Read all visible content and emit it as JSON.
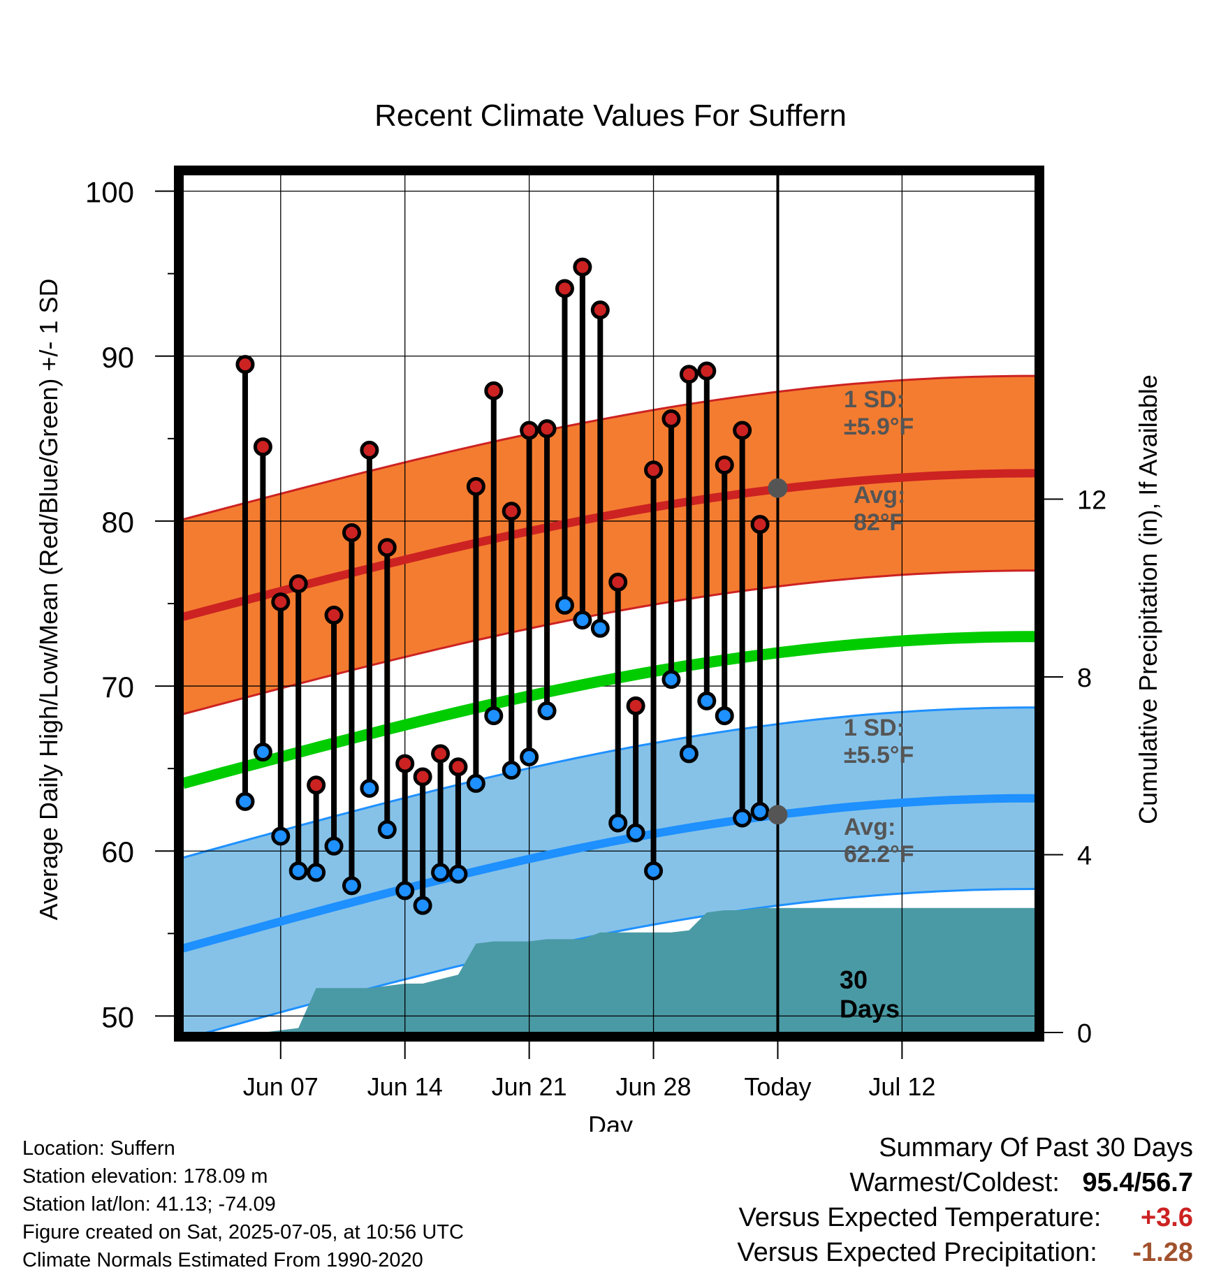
{
  "chart_data": {
    "type": "bar",
    "title": "Recent Climate Values For Suffern",
    "xlabel": "Day",
    "ylabel": "Average Daily High/Low/Mean (Red/Blue/Green) +/- 1 SD",
    "y2label": "Cumulative Precipitation (in), If Available",
    "ylim": [
      49,
      101
    ],
    "y_ticks": [
      "50",
      "60",
      "70",
      "80",
      "90",
      "100"
    ],
    "y2lim": [
      0,
      19.3
    ],
    "y2_ticks": [
      "0",
      "4",
      "8",
      "12"
    ],
    "x_range_days": [
      -33.5,
      14.5
    ],
    "x_ticks": [
      {
        "day": -28,
        "label": "Jun 07"
      },
      {
        "day": -21,
        "label": "Jun 14"
      },
      {
        "day": -14,
        "label": "Jun 21"
      },
      {
        "day": -7,
        "label": "Jun 28"
      },
      {
        "day": 0,
        "label": "Today"
      },
      {
        "day": 7,
        "label": "Jul 12"
      }
    ],
    "series": [
      {
        "name": "High",
        "color": "#cc2222",
        "values": [
          89.5,
          84.5,
          75.1,
          76.2,
          64.0,
          74.3,
          79.3,
          84.3,
          78.4,
          65.3,
          64.5,
          65.9,
          65.1,
          82.1,
          87.9,
          80.6,
          85.5,
          85.6,
          94.1,
          95.4,
          92.8,
          76.3,
          68.8,
          83.1,
          86.2,
          88.9,
          89.1,
          83.4,
          85.5,
          79.8
        ]
      },
      {
        "name": "Low",
        "color": "#1e90ff",
        "values": [
          63.0,
          66.0,
          60.9,
          58.8,
          58.7,
          60.3,
          57.9,
          63.8,
          61.3,
          57.6,
          56.7,
          58.7,
          58.6,
          64.1,
          68.2,
          64.9,
          65.7,
          68.5,
          74.9,
          74.0,
          73.5,
          61.7,
          61.1,
          58.8,
          70.4,
          65.9,
          69.1,
          68.2,
          62.0,
          62.4
        ]
      }
    ],
    "normal_high": {
      "start": 74.2,
      "end": 82.9,
      "today": 82,
      "sd": 5.9,
      "color": "#cc2222",
      "band_color": "#f47c30"
    },
    "normal_low": {
      "start": 54.1,
      "end": 63.2,
      "today": 62.2,
      "sd": 5.5,
      "color": "#1e90ff",
      "band_color": "#86c2e8"
    },
    "normal_mean": {
      "start": 64.1,
      "end": 73.0,
      "color": "#00cc00"
    },
    "precipitation": {
      "color": "#4a9aa5",
      "days": [
        -29,
        -27,
        -26,
        -25,
        -24,
        -23,
        -22,
        -21,
        -20,
        -19,
        -18,
        -17,
        -16,
        -15,
        -14,
        -13,
        -12,
        -11,
        -10,
        -9,
        -8,
        -7,
        -6,
        -5,
        -4,
        -3,
        -2,
        -1,
        0
      ],
      "values": [
        0,
        0.1,
        1.0,
        1.0,
        1.0,
        1.0,
        1.05,
        1.1,
        1.1,
        1.2,
        1.3,
        2.0,
        2.05,
        2.05,
        2.05,
        2.1,
        2.1,
        2.1,
        2.25,
        2.25,
        2.25,
        2.25,
        2.25,
        2.3,
        2.7,
        2.75,
        2.75,
        2.8,
        2.8
      ]
    },
    "annotations": {
      "high_sd_label": [
        "1 SD:",
        "±5.9°F"
      ],
      "high_avg_label": [
        "Avg:",
        "82°F"
      ],
      "low_sd_label": [
        "1 SD:",
        "±5.5°F"
      ],
      "low_avg_label": [
        "Avg:",
        "62.2°F"
      ],
      "window_label": [
        "30",
        "Days"
      ]
    },
    "grid": true
  },
  "footer": {
    "location": "Location: Suffern",
    "elevation": "Station elevation: 178.09 m",
    "latlon": "Station lat/lon: 41.13; -74.09",
    "created": "Figure created on Sat, 2025-07-05, at 10:56 UTC",
    "normals": "Climate Normals Estimated From 1990-2020"
  },
  "summary": {
    "title": "Summary Of Past 30 Days",
    "warmest_label": "Warmest/Coldest:",
    "warmest_value": "95.4",
    "coldest_value": "56.7",
    "temp_label": "Versus Expected Temperature:",
    "temp_value": "+3.6",
    "precip_label": "Versus Expected Precipitation:",
    "precip_value": "-1.28"
  }
}
